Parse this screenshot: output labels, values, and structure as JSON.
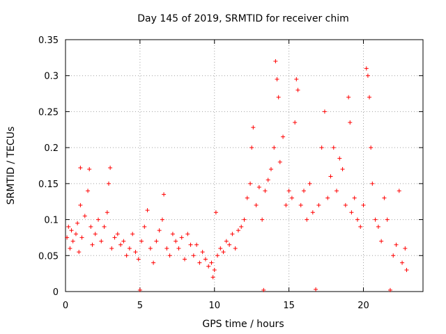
{
  "chart_data": {
    "type": "scatter",
    "title": "Day 145 of 2019, SRMTID for receiver chim",
    "xlabel": "GPS time / hours",
    "ylabel": "SRMTID / TECUs",
    "xlim": [
      0,
      24
    ],
    "ylim": [
      0,
      0.35
    ],
    "x_ticks": [
      0,
      5,
      10,
      15,
      20
    ],
    "x_tick_labels": [
      "0",
      "5",
      "10",
      "15",
      "20"
    ],
    "y_ticks": [
      0,
      0.05,
      0.1,
      0.15,
      0.2,
      0.25,
      0.3,
      0.35
    ],
    "y_tick_labels": [
      "0",
      "0.05",
      "0.1",
      "0.15",
      "0.2",
      "0.25",
      "0.3",
      "0.35"
    ],
    "grid": true,
    "marker": "plus",
    "color": "#ff0000",
    "series": [
      {
        "name": "SRMTID",
        "points": [
          [
            0.1,
            0.075
          ],
          [
            0.2,
            0.09
          ],
          [
            0.3,
            0.06
          ],
          [
            0.4,
            0.085
          ],
          [
            0.5,
            0.07
          ],
          [
            0.7,
            0.08
          ],
          [
            0.8,
            0.095
          ],
          [
            0.9,
            0.055
          ],
          [
            1.0,
            0.12
          ],
          [
            1.0,
            0.172
          ],
          [
            1.1,
            0.075
          ],
          [
            1.3,
            0.105
          ],
          [
            1.5,
            0.14
          ],
          [
            1.6,
            0.17
          ],
          [
            1.7,
            0.09
          ],
          [
            1.8,
            0.065
          ],
          [
            2.0,
            0.08
          ],
          [
            2.2,
            0.1
          ],
          [
            2.4,
            0.07
          ],
          [
            2.6,
            0.09
          ],
          [
            2.8,
            0.11
          ],
          [
            2.9,
            0.15
          ],
          [
            3.0,
            0.172
          ],
          [
            3.1,
            0.06
          ],
          [
            3.3,
            0.075
          ],
          [
            3.5,
            0.08
          ],
          [
            3.7,
            0.065
          ],
          [
            3.9,
            0.07
          ],
          [
            4.1,
            0.05
          ],
          [
            4.3,
            0.06
          ],
          [
            4.5,
            0.08
          ],
          [
            4.7,
            0.055
          ],
          [
            4.9,
            0.045
          ],
          [
            5.0,
            0.002
          ],
          [
            5.1,
            0.07
          ],
          [
            5.3,
            0.09
          ],
          [
            5.5,
            0.113
          ],
          [
            5.7,
            0.06
          ],
          [
            5.9,
            0.04
          ],
          [
            6.1,
            0.07
          ],
          [
            6.3,
            0.085
          ],
          [
            6.5,
            0.1
          ],
          [
            6.6,
            0.135
          ],
          [
            6.8,
            0.06
          ],
          [
            7.0,
            0.05
          ],
          [
            7.2,
            0.08
          ],
          [
            7.4,
            0.07
          ],
          [
            7.6,
            0.06
          ],
          [
            7.8,
            0.075
          ],
          [
            8.0,
            0.045
          ],
          [
            8.2,
            0.08
          ],
          [
            8.4,
            0.065
          ],
          [
            8.6,
            0.05
          ],
          [
            8.8,
            0.065
          ],
          [
            9.0,
            0.04
          ],
          [
            9.2,
            0.055
          ],
          [
            9.4,
            0.045
          ],
          [
            9.6,
            0.035
          ],
          [
            9.8,
            0.04
          ],
          [
            9.9,
            0.02
          ],
          [
            10.0,
            0.03
          ],
          [
            10.1,
            0.11
          ],
          [
            10.2,
            0.05
          ],
          [
            10.4,
            0.06
          ],
          [
            10.6,
            0.055
          ],
          [
            10.8,
            0.07
          ],
          [
            11.0,
            0.065
          ],
          [
            11.2,
            0.08
          ],
          [
            11.4,
            0.06
          ],
          [
            11.6,
            0.085
          ],
          [
            11.8,
            0.09
          ],
          [
            12.0,
            0.1
          ],
          [
            12.2,
            0.13
          ],
          [
            12.4,
            0.15
          ],
          [
            12.5,
            0.2
          ],
          [
            12.6,
            0.228
          ],
          [
            12.8,
            0.12
          ],
          [
            13.0,
            0.145
          ],
          [
            13.2,
            0.1
          ],
          [
            13.3,
            0.002
          ],
          [
            13.4,
            0.14
          ],
          [
            13.6,
            0.155
          ],
          [
            13.8,
            0.17
          ],
          [
            14.0,
            0.2
          ],
          [
            14.1,
            0.32
          ],
          [
            14.2,
            0.295
          ],
          [
            14.3,
            0.27
          ],
          [
            14.4,
            0.18
          ],
          [
            14.6,
            0.215
          ],
          [
            14.8,
            0.12
          ],
          [
            15.0,
            0.14
          ],
          [
            15.2,
            0.13
          ],
          [
            15.4,
            0.235
          ],
          [
            15.5,
            0.295
          ],
          [
            15.6,
            0.28
          ],
          [
            15.8,
            0.12
          ],
          [
            16.0,
            0.14
          ],
          [
            16.2,
            0.1
          ],
          [
            16.4,
            0.15
          ],
          [
            16.6,
            0.11
          ],
          [
            16.8,
            0.003
          ],
          [
            17.0,
            0.12
          ],
          [
            17.2,
            0.2
          ],
          [
            17.4,
            0.25
          ],
          [
            17.6,
            0.13
          ],
          [
            17.8,
            0.16
          ],
          [
            18.0,
            0.2
          ],
          [
            18.2,
            0.14
          ],
          [
            18.4,
            0.185
          ],
          [
            18.6,
            0.17
          ],
          [
            18.8,
            0.12
          ],
          [
            19.0,
            0.27
          ],
          [
            19.1,
            0.235
          ],
          [
            19.2,
            0.11
          ],
          [
            19.4,
            0.13
          ],
          [
            19.6,
            0.1
          ],
          [
            19.8,
            0.09
          ],
          [
            20.0,
            0.12
          ],
          [
            20.2,
            0.31
          ],
          [
            20.3,
            0.3
          ],
          [
            20.4,
            0.27
          ],
          [
            20.5,
            0.2
          ],
          [
            20.6,
            0.15
          ],
          [
            20.8,
            0.1
          ],
          [
            21.0,
            0.09
          ],
          [
            21.2,
            0.07
          ],
          [
            21.4,
            0.13
          ],
          [
            21.6,
            0.1
          ],
          [
            21.8,
            0.002
          ],
          [
            22.0,
            0.05
          ],
          [
            22.2,
            0.065
          ],
          [
            22.4,
            0.14
          ],
          [
            22.6,
            0.04
          ],
          [
            22.8,
            0.06
          ],
          [
            22.9,
            0.03
          ]
        ]
      }
    ]
  }
}
